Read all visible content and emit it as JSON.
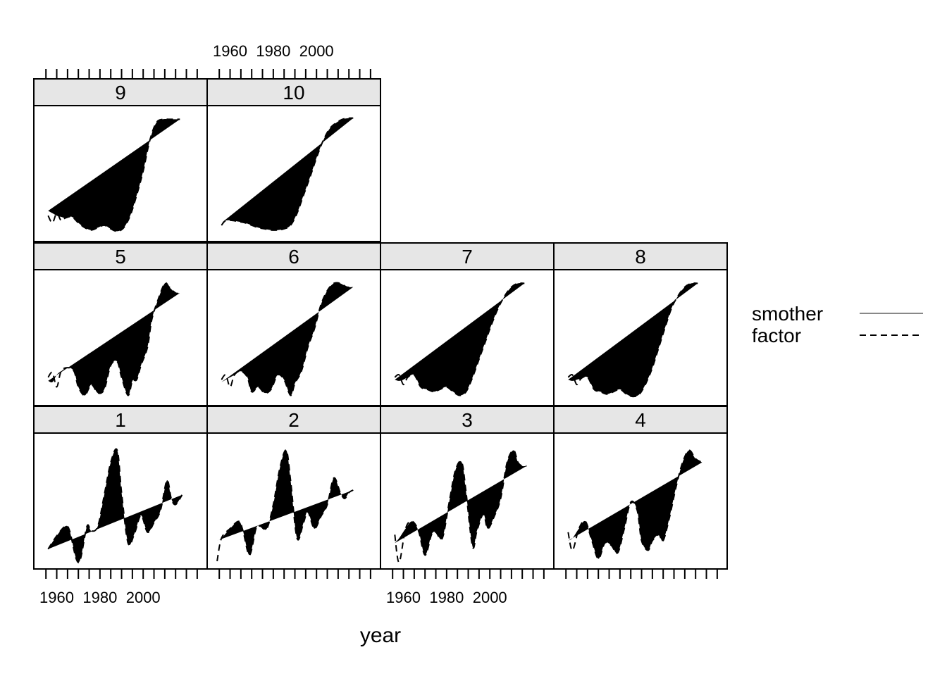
{
  "chart_data": {
    "type": "line",
    "xlabel": "year",
    "xlim": [
      1952,
      2027
    ],
    "x_ticks": [
      1955,
      1960,
      1965,
      1970,
      1975,
      1980,
      1985,
      1990,
      1995,
      2000,
      2005,
      2010,
      2015,
      2020,
      2025
    ],
    "x_tick_labels": [
      1960,
      1980,
      2000
    ],
    "y_axis_labels": "none",
    "grid": false,
    "legend": {
      "placement": "right",
      "entries": [
        "smother",
        "factor"
      ]
    },
    "series_styles": {
      "smother": {
        "color": "#888888",
        "dash": "solid"
      },
      "factor": {
        "color": "#000000",
        "dash": "dashed"
      }
    },
    "panels": [
      {
        "label": "1",
        "x": [
          1956,
          1960,
          1964,
          1966,
          1969,
          1971,
          1974,
          1976,
          1979,
          1982,
          1985,
          1988,
          1990,
          1993,
          1996,
          1999,
          2002,
          2005,
          2008,
          2011,
          2013,
          2015,
          2018
        ],
        "smother": [
          0.13,
          0.24,
          0.32,
          0.28,
          0.05,
          0.05,
          0.32,
          0.28,
          0.32,
          0.58,
          0.85,
          0.95,
          0.6,
          0.18,
          0.26,
          0.41,
          0.27,
          0.35,
          0.45,
          0.7,
          0.55,
          0.5,
          0.58
        ],
        "factor": [
          0.13,
          0.24,
          0.32,
          0.28,
          0.05,
          0.05,
          0.32,
          0.28,
          0.32,
          0.58,
          0.85,
          0.95,
          0.6,
          0.18,
          0.26,
          0.41,
          0.27,
          0.35,
          0.45,
          0.7,
          0.55,
          0.5,
          0.58
        ]
      },
      {
        "label": "2",
        "x": [
          1954,
          1956,
          1960,
          1964,
          1966,
          1969,
          1972,
          1974,
          1977,
          1980,
          1983,
          1986,
          1988,
          1991,
          1994,
          1996,
          1999,
          2002,
          2005,
          2008,
          2011,
          2013,
          2015,
          2017
        ],
        "smother": [
          0.2,
          0.22,
          0.3,
          0.36,
          0.28,
          0.08,
          0.3,
          0.32,
          0.3,
          0.5,
          0.8,
          0.95,
          0.7,
          0.22,
          0.35,
          0.44,
          0.3,
          0.4,
          0.5,
          0.72,
          0.6,
          0.55,
          0.6,
          0.62
        ],
        "factor": [
          0.03,
          0.22,
          0.3,
          0.36,
          0.28,
          0.08,
          0.3,
          0.32,
          0.3,
          0.5,
          0.8,
          0.95,
          0.7,
          0.22,
          0.35,
          0.44,
          0.3,
          0.4,
          0.5,
          0.72,
          0.6,
          0.55,
          0.6,
          0.62
        ]
      },
      {
        "label": "3",
        "x": [
          1956,
          1958,
          1961,
          1964,
          1967,
          1970,
          1973,
          1975,
          1978,
          1981,
          1984,
          1987,
          1989,
          1992,
          1994,
          1997,
          1999,
          2002,
          2005,
          2008,
          2011,
          2013,
          2015,
          2017
        ],
        "smother": [
          0.18,
          0.22,
          0.3,
          0.36,
          0.28,
          0.08,
          0.25,
          0.27,
          0.22,
          0.5,
          0.78,
          0.85,
          0.6,
          0.15,
          0.28,
          0.42,
          0.3,
          0.4,
          0.55,
          0.85,
          0.95,
          0.85,
          0.82,
          0.82
        ],
        "factor": [
          0.25,
          0.02,
          0.3,
          0.36,
          0.28,
          0.08,
          0.25,
          0.27,
          0.22,
          0.5,
          0.78,
          0.85,
          0.6,
          0.15,
          0.28,
          0.42,
          0.3,
          0.4,
          0.55,
          0.85,
          0.95,
          0.85,
          0.82,
          0.82
        ]
      },
      {
        "label": "4",
        "x": [
          1956,
          1958,
          1961,
          1964,
          1967,
          1970,
          1973,
          1976,
          1979,
          1982,
          1985,
          1988,
          1990,
          1993,
          1995,
          1998,
          2000,
          2003,
          2006,
          2009,
          2012,
          2015,
          2018
        ],
        "smother": [
          0.2,
          0.22,
          0.3,
          0.36,
          0.2,
          0.05,
          0.18,
          0.16,
          0.1,
          0.3,
          0.52,
          0.45,
          0.2,
          0.12,
          0.2,
          0.25,
          0.2,
          0.4,
          0.65,
          0.85,
          0.95,
          0.88,
          0.85
        ],
        "factor": [
          0.27,
          0.12,
          0.3,
          0.36,
          0.2,
          0.05,
          0.18,
          0.16,
          0.1,
          0.3,
          0.52,
          0.45,
          0.2,
          0.12,
          0.2,
          0.25,
          0.2,
          0.4,
          0.65,
          0.85,
          0.95,
          0.88,
          0.85
        ]
      },
      {
        "label": "5",
        "x": [
          1956,
          1958,
          1960,
          1962,
          1965,
          1968,
          1970,
          1973,
          1976,
          1979,
          1982,
          1985,
          1988,
          1990,
          1993,
          1995,
          1997,
          1999,
          2002,
          2004,
          2007,
          2010,
          2012,
          2015,
          2017
        ],
        "smother": [
          0.17,
          0.16,
          0.22,
          0.25,
          0.28,
          0.25,
          0.12,
          0.05,
          0.14,
          0.07,
          0.1,
          0.3,
          0.33,
          0.2,
          0.05,
          0.17,
          0.18,
          0.3,
          0.45,
          0.68,
          0.85,
          0.98,
          0.95,
          0.9,
          0.9
        ],
        "factor": [
          0.2,
          0.24,
          0.12,
          0.25,
          0.28,
          0.25,
          0.12,
          0.05,
          0.14,
          0.07,
          0.1,
          0.3,
          0.33,
          0.2,
          0.05,
          0.17,
          0.18,
          0.3,
          0.45,
          0.68,
          0.85,
          0.98,
          0.95,
          0.9,
          0.9
        ]
      },
      {
        "label": "6",
        "x": [
          1956,
          1958,
          1960,
          1962,
          1965,
          1968,
          1970,
          1973,
          1976,
          1979,
          1982,
          1985,
          1988,
          1990,
          1993,
          1996,
          1999,
          2002,
          2005,
          2008,
          2011,
          2014,
          2017
        ],
        "smother": [
          0.16,
          0.18,
          0.2,
          0.22,
          0.25,
          0.2,
          0.08,
          0.12,
          0.07,
          0.1,
          0.22,
          0.18,
          0.05,
          0.15,
          0.25,
          0.45,
          0.6,
          0.8,
          0.92,
          0.98,
          0.98,
          0.95,
          0.95
        ],
        "factor": [
          0.18,
          0.22,
          0.12,
          0.22,
          0.25,
          0.2,
          0.08,
          0.12,
          0.07,
          0.1,
          0.22,
          0.18,
          0.05,
          0.15,
          0.25,
          0.45,
          0.6,
          0.8,
          0.92,
          0.98,
          0.98,
          0.95,
          0.95
        ]
      },
      {
        "label": "7",
        "x": [
          1956,
          1958,
          1960,
          1962,
          1965,
          1968,
          1971,
          1974,
          1977,
          1980,
          1983,
          1986,
          1989,
          1992,
          1995,
          1998,
          2001,
          2004,
          2007,
          2010,
          2013,
          2016
        ],
        "smother": [
          0.18,
          0.17,
          0.18,
          0.2,
          0.22,
          0.12,
          0.1,
          0.08,
          0.1,
          0.12,
          0.08,
          0.05,
          0.08,
          0.2,
          0.35,
          0.5,
          0.65,
          0.78,
          0.88,
          0.95,
          0.98,
          0.98
        ],
        "factor": [
          0.2,
          0.22,
          0.14,
          0.2,
          0.22,
          0.12,
          0.1,
          0.08,
          0.1,
          0.12,
          0.08,
          0.05,
          0.08,
          0.2,
          0.35,
          0.5,
          0.65,
          0.78,
          0.88,
          0.95,
          0.98,
          0.98
        ],
        "display_note": "smooth"
      },
      {
        "label": "8",
        "x": [
          1956,
          1958,
          1960,
          1962,
          1965,
          1968,
          1971,
          1974,
          1977,
          1980,
          1983,
          1986,
          1989,
          1992,
          1995,
          1998,
          2001,
          2004,
          2007,
          2010,
          2013,
          2016
        ],
        "smother": [
          0.18,
          0.17,
          0.18,
          0.19,
          0.2,
          0.1,
          0.08,
          0.06,
          0.08,
          0.1,
          0.06,
          0.04,
          0.06,
          0.15,
          0.28,
          0.45,
          0.62,
          0.78,
          0.88,
          0.95,
          0.98,
          0.98
        ],
        "factor": [
          0.2,
          0.22,
          0.14,
          0.19,
          0.2,
          0.1,
          0.08,
          0.06,
          0.08,
          0.1,
          0.06,
          0.04,
          0.06,
          0.15,
          0.28,
          0.45,
          0.62,
          0.78,
          0.88,
          0.95,
          0.98,
          0.98
        ]
      },
      {
        "label": "9",
        "x": [
          1956,
          1958,
          1960,
          1962,
          1964,
          1967,
          1970,
          1973,
          1976,
          1979,
          1982,
          1985,
          1988,
          1991,
          1994,
          1997,
          2000,
          2003,
          2006,
          2009,
          2012,
          2015,
          2017
        ],
        "smother": [
          0.22,
          0.2,
          0.18,
          0.17,
          0.16,
          0.17,
          0.12,
          0.08,
          0.06,
          0.08,
          0.1,
          0.07,
          0.05,
          0.08,
          0.18,
          0.35,
          0.55,
          0.8,
          0.95,
          0.98,
          0.98,
          0.98,
          0.98
        ],
        "factor": [
          0.18,
          0.12,
          0.2,
          0.14,
          0.16,
          0.17,
          0.12,
          0.08,
          0.06,
          0.08,
          0.1,
          0.07,
          0.05,
          0.08,
          0.18,
          0.35,
          0.55,
          0.8,
          0.95,
          0.98,
          0.98,
          0.98,
          0.98
        ]
      },
      {
        "label": "10",
        "x": [
          1956,
          1958,
          1961,
          1964,
          1967,
          1970,
          1973,
          1976,
          1979,
          1982,
          1985,
          1988,
          1991,
          1994,
          1997,
          2000,
          2003,
          2006,
          2009,
          2012,
          2015,
          2017
        ],
        "smother": [
          0.12,
          0.14,
          0.14,
          0.13,
          0.12,
          0.1,
          0.08,
          0.07,
          0.06,
          0.06,
          0.07,
          0.1,
          0.2,
          0.35,
          0.5,
          0.66,
          0.8,
          0.9,
          0.95,
          0.98,
          0.99,
          0.99
        ],
        "factor": [
          0.1,
          0.14,
          0.14,
          0.13,
          0.12,
          0.1,
          0.08,
          0.07,
          0.06,
          0.06,
          0.07,
          0.1,
          0.2,
          0.35,
          0.5,
          0.66,
          0.8,
          0.9,
          0.95,
          0.98,
          0.99,
          0.99
        ]
      }
    ]
  }
}
